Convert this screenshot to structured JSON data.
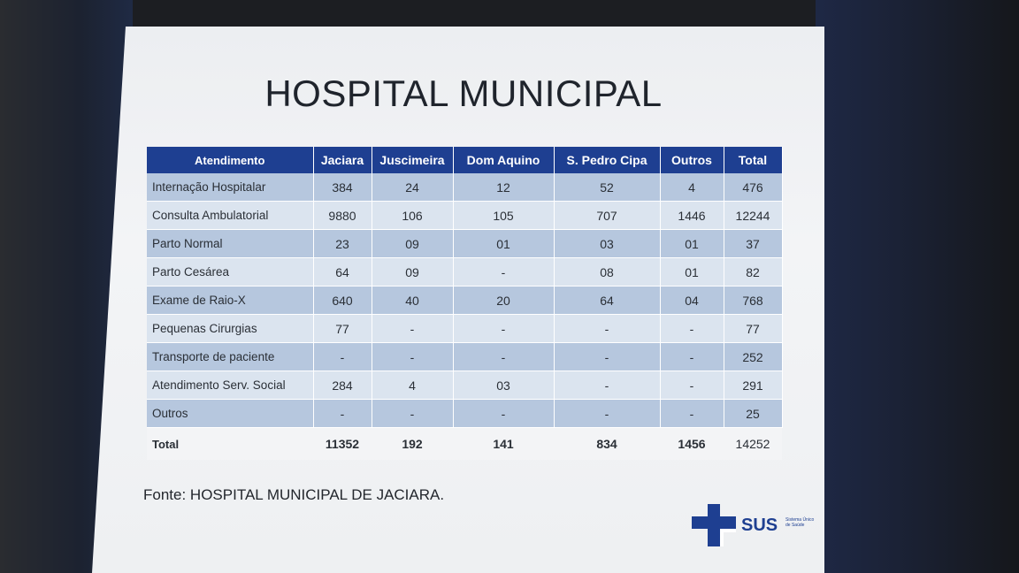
{
  "title": "HOSPITAL MUNICIPAL",
  "table": {
    "headers": [
      "Atendimento",
      "Jaciara",
      "Juscimeira",
      "Dom Aquino",
      "S. Pedro Cipa",
      "Outros",
      "Total"
    ],
    "rows": [
      [
        "Internação Hospitalar",
        "384",
        "24",
        "12",
        "52",
        "4",
        "476"
      ],
      [
        "Consulta Ambulatorial",
        "9880",
        "106",
        "105",
        "707",
        "1446",
        "12244"
      ],
      [
        "Parto Normal",
        "23",
        "09",
        "01",
        "03",
        "01",
        "37"
      ],
      [
        "Parto Cesárea",
        "64",
        "09",
        "-",
        "08",
        "01",
        "82"
      ],
      [
        "Exame de Raio-X",
        "640",
        "40",
        "20",
        "64",
        "04",
        "768"
      ],
      [
        "Pequenas Cirurgias",
        "77",
        "-",
        "-",
        "-",
        "-",
        "77"
      ],
      [
        "Transporte de paciente",
        "-",
        "-",
        "-",
        "-",
        "-",
        "252"
      ],
      [
        "Atendimento Serv. Social",
        "284",
        "4",
        "03",
        "-",
        "-",
        "291"
      ],
      [
        "Outros",
        "-",
        "-",
        "-",
        "-",
        "-",
        "25"
      ]
    ],
    "totals": [
      "Total",
      "11352",
      "192",
      "141",
      "834",
      "1456",
      "14252"
    ]
  },
  "source": "Fonte: HOSPITAL MUNICIPAL DE JACIARA.",
  "logo": {
    "text": "SUS",
    "subtitle": "Sistema Único de Saúde",
    "icon": "sus-cross-icon",
    "color": "#1e3f91"
  },
  "colors": {
    "header": "#1e3f91",
    "row_dark": "#b6c7de",
    "row_light": "#dbe4ef"
  }
}
